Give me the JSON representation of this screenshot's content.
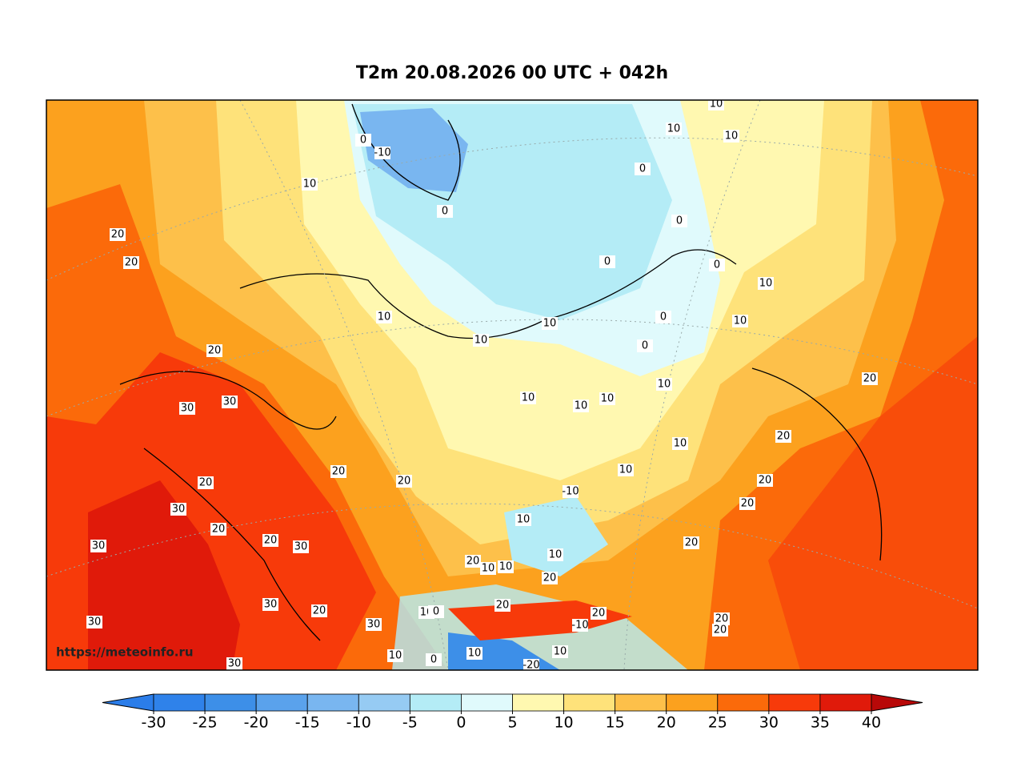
{
  "header": {
    "title": "T2m 20.08.2026 00 UTC + 042h"
  },
  "map": {
    "watermark": "https://meteoinfo.ru",
    "contour_labels": [
      10,
      10,
      10,
      -10,
      0,
      10,
      0,
      0,
      0,
      20,
      20,
      0,
      0,
      10,
      10,
      0,
      10,
      10,
      10,
      0,
      20,
      10,
      20,
      10,
      10,
      10,
      30,
      30,
      20,
      10,
      20,
      10,
      20,
      -10,
      20,
      20,
      20,
      30,
      10,
      20,
      20,
      20,
      30,
      30,
      10,
      20,
      10,
      10,
      20,
      30,
      20,
      10,
      0,
      20,
      20,
      30,
      30,
      -10,
      20,
      20,
      10,
      0,
      10,
      -20,
      30,
      10
    ]
  },
  "colorbar": {
    "ticks": [
      -30,
      -25,
      -20,
      -15,
      -10,
      -5,
      0,
      5,
      10,
      15,
      20,
      25,
      30,
      35,
      40
    ],
    "colors": [
      "#2f82ea",
      "#3d8fe8",
      "#5aa2ec",
      "#79b6f0",
      "#96cbf3",
      "#b4ecf6",
      "#e0fafc",
      "#fff8b0",
      "#fee27a",
      "#fdc04a",
      "#fca11e",
      "#fb6a0a",
      "#f73a0a",
      "#e01a0a"
    ],
    "under_color": "#2b7de9",
    "over_color": "#b80808"
  }
}
